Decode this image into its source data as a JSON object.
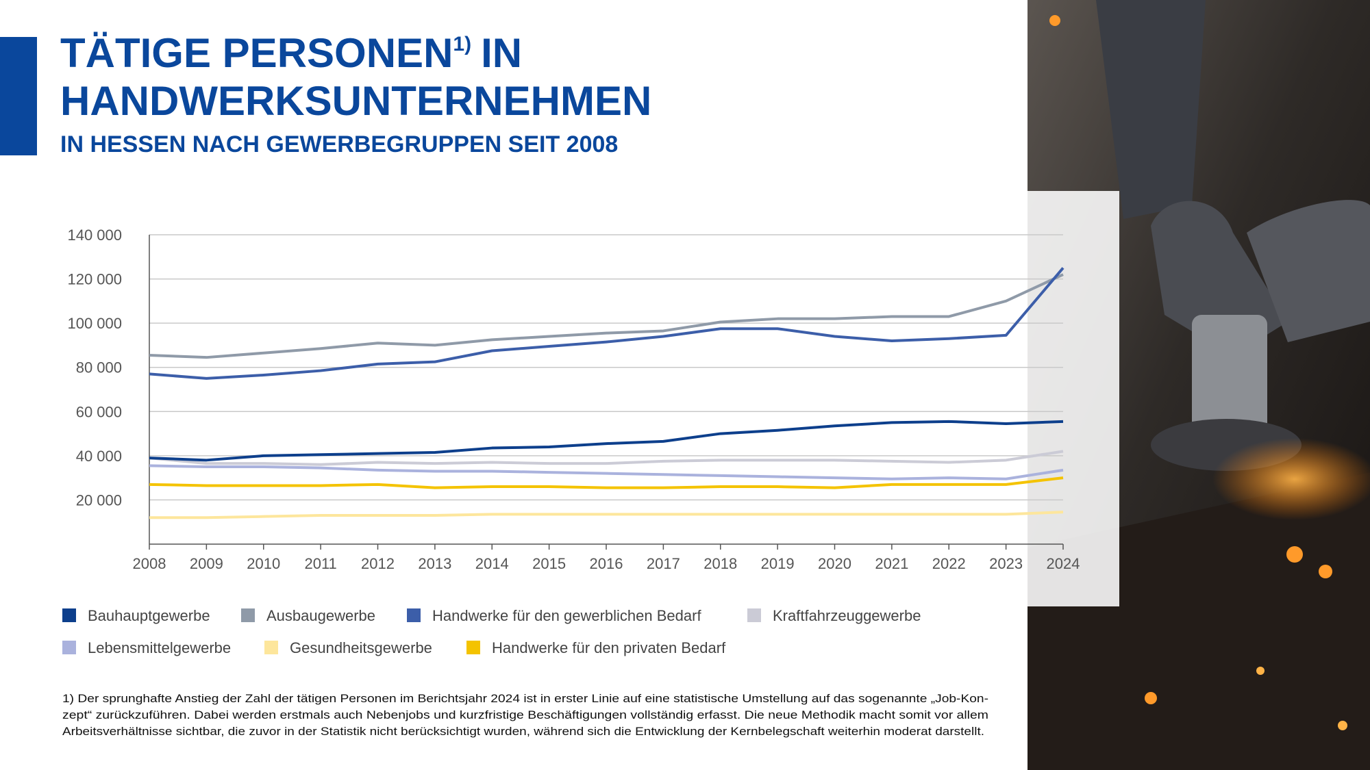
{
  "chart_data": {
    "type": "line",
    "title_lines": [
      "TÄTIGE PERSONEN",
      "IN",
      "HANDWERKSUNTERNEHMEN"
    ],
    "title_note": "1)",
    "subtitle": "IN HESSEN NACH GEWERBEGRUPPEN SEIT 2008",
    "categories": [
      "2008",
      "2009",
      "2010",
      "2011",
      "2012",
      "2013",
      "2014",
      "2015",
      "2016",
      "2017",
      "2018",
      "2019",
      "2020",
      "2021",
      "2022",
      "2023",
      "2024"
    ],
    "ylim": [
      0,
      140000
    ],
    "yticks": [
      {
        "value": 20000,
        "label": "20 000"
      },
      {
        "value": 40000,
        "label": "40 000"
      },
      {
        "value": 60000,
        "label": "60 000"
      },
      {
        "value": 80000,
        "label": "80 000"
      },
      {
        "value": 100000,
        "label": "100 000"
      },
      {
        "value": 120000,
        "label": "120 000"
      },
      {
        "value": 140000,
        "label": "140 000"
      }
    ],
    "grid": true,
    "series": [
      {
        "name": "Bauhauptgewerbe",
        "color": "#0d3f8c",
        "values": [
          39000,
          38000,
          40000,
          40500,
          41000,
          41500,
          43500,
          44000,
          45500,
          46500,
          50000,
          51500,
          53500,
          55000,
          55500,
          54500,
          55500
        ]
      },
      {
        "name": "Ausbaugewerbe",
        "color": "#8f9aa8",
        "values": [
          85500,
          84500,
          86500,
          88500,
          91000,
          90000,
          92500,
          94000,
          95500,
          96500,
          100500,
          102000,
          102000,
          103000,
          103000,
          110000,
          122000
        ]
      },
      {
        "name": "Handwerke für den gewerblichen Bedarf",
        "color": "#3c5ea9",
        "values": [
          77000,
          75000,
          76500,
          78500,
          81500,
          82500,
          87500,
          89500,
          91500,
          94000,
          97500,
          97500,
          94000,
          92000,
          93000,
          94500,
          125000
        ]
      },
      {
        "name": "Kraftfahrzeuggewerbe",
        "color": "#cbcbd6",
        "values": [
          39000,
          36500,
          36500,
          36000,
          37000,
          36500,
          37000,
          36500,
          36500,
          37500,
          38000,
          38000,
          38000,
          37500,
          37000,
          38000,
          42000
        ]
      },
      {
        "name": "Lebensmittelgewerbe",
        "color": "#aab2dd",
        "values": [
          35500,
          35000,
          35000,
          34500,
          33500,
          33000,
          33000,
          32500,
          32000,
          31500,
          31000,
          30500,
          30000,
          29500,
          30000,
          29500,
          33500
        ]
      },
      {
        "name": "Gesundheitsgewerbe",
        "color": "#fde69c",
        "values": [
          12000,
          12000,
          12500,
          13000,
          13000,
          13000,
          13500,
          13500,
          13500,
          13500,
          13500,
          13500,
          13500,
          13500,
          13500,
          13500,
          14500
        ]
      },
      {
        "name": "Handwerke für den privaten Bedarf",
        "color": "#f4c300",
        "values": [
          27000,
          26500,
          26500,
          26500,
          27000,
          25500,
          26000,
          26000,
          25500,
          25500,
          26000,
          26000,
          25500,
          27000,
          27000,
          27000,
          30000
        ]
      }
    ],
    "footnote": [
      "1) Der sprunghafte Anstieg der Zahl der tätigen Personen im Berichtsjahr 2024 ist in erster Linie auf eine statistische Umstellung auf das sogenannte „Job-Kon-",
      "zept“ zurückzuführen. Dabei werden erstmals auch Nebenjobs und kurzfristige Beschäftigungen vollständig erfasst. Die neue Methodik macht somit vor allem",
      "Arbeitsverhältnisse sichtbar, die zuvor in der Statistik nicht berücksichtigt wurden, während sich die Entwicklung der Kernbelegschaft weiterhin moderat darstellt."
    ]
  }
}
